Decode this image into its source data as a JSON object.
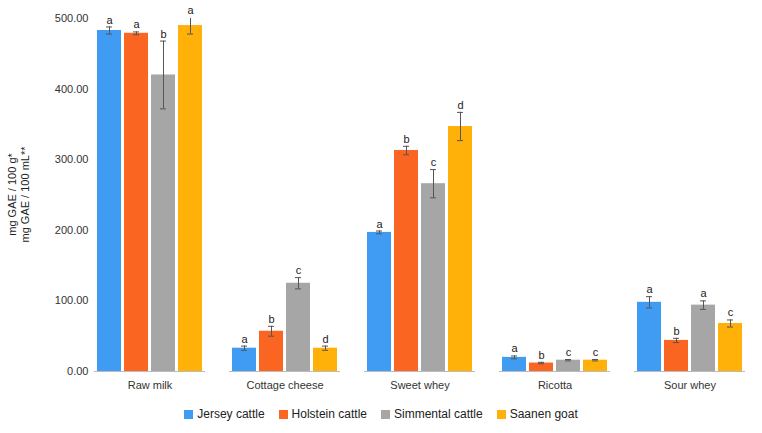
{
  "chart_data": {
    "type": "bar",
    "y_label": [
      "mg GAE / 100 g*",
      "mg GAE / 100 mL**"
    ],
    "categories": [
      "Raw milk",
      "Cottage cheese",
      "Sweet whey",
      "Ricotta",
      "Sour whey"
    ],
    "series": [
      {
        "name": "Jersey cattle",
        "color": "#3f9cf2",
        "values": [
          483,
          33,
          197,
          20,
          98
        ],
        "errors": [
          5,
          3,
          2,
          2,
          8
        ],
        "letters": [
          "a",
          "a",
          "a",
          "a",
          "a"
        ]
      },
      {
        "name": "Holstein cattle",
        "color": "#fa6522",
        "values": [
          479,
          57,
          313,
          12,
          44
        ],
        "errors": [
          2,
          7,
          6,
          1,
          3
        ],
        "letters": [
          "a",
          "b",
          "b",
          "b",
          "b"
        ]
      },
      {
        "name": "Simmental cattle",
        "color": "#a6a6a6",
        "values": [
          420,
          125,
          266,
          16,
          94
        ],
        "errors": [
          48,
          8,
          20,
          1,
          6
        ],
        "letters": [
          "b",
          "c",
          "c",
          "c",
          "a"
        ]
      },
      {
        "name": "Saanen goat",
        "color": "#ffb10a",
        "values": [
          490,
          33,
          347,
          16,
          68
        ],
        "errors": [
          12,
          3,
          20,
          1,
          5
        ],
        "letters": [
          "a",
          "d",
          "d",
          "c",
          "c"
        ]
      }
    ],
    "ylim": [
      0,
      500
    ],
    "yticks": [
      {
        "value": 0,
        "label": "0.00"
      },
      {
        "value": 100,
        "label": "100.00"
      },
      {
        "value": 200,
        "label": "200.00"
      },
      {
        "value": 300,
        "label": "300.00"
      },
      {
        "value": 400,
        "label": "400.00"
      },
      {
        "value": 500,
        "label": "500.00"
      }
    ],
    "grid": false,
    "legend": "bottom"
  }
}
